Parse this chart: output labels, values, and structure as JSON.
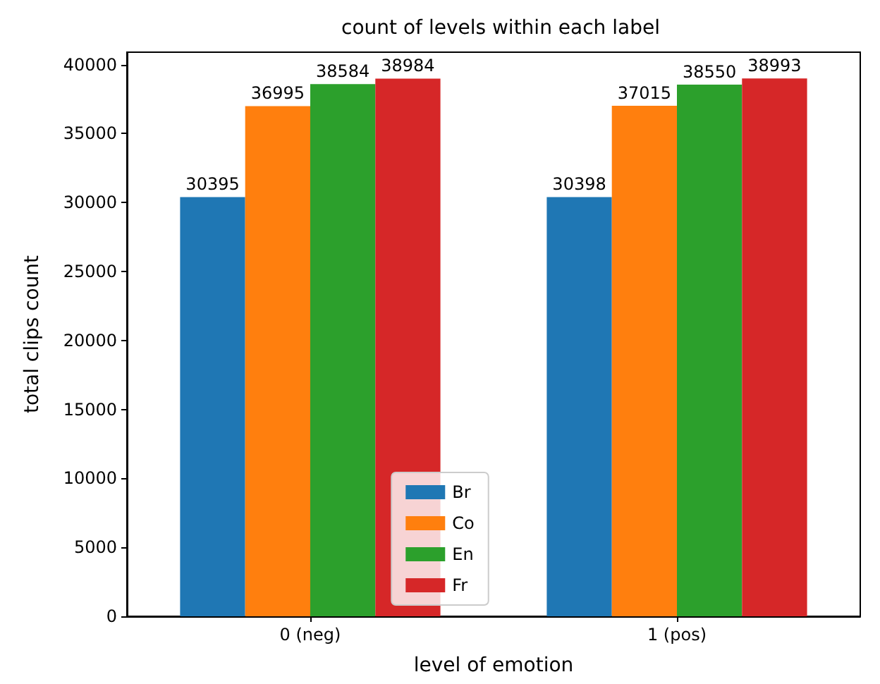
{
  "chart_data": {
    "type": "bar",
    "title": "count of levels within each label",
    "xlabel": "level of emotion",
    "ylabel": "total clips count",
    "categories": [
      "0 (neg)",
      "1 (pos)"
    ],
    "series": [
      {
        "name": "Br",
        "color": "#1f77b4",
        "values": [
          30395,
          30398
        ]
      },
      {
        "name": "Co",
        "color": "#ff7f0e",
        "values": [
          36995,
          37015
        ]
      },
      {
        "name": "En",
        "color": "#2ca02c",
        "values": [
          38584,
          38550
        ]
      },
      {
        "name": "Fr",
        "color": "#d62728",
        "values": [
          38984,
          38993
        ]
      }
    ],
    "ylim": [
      0,
      40900
    ],
    "yticks": [
      0,
      5000,
      10000,
      15000,
      20000,
      25000,
      30000,
      35000,
      40000
    ],
    "data_labels": true,
    "grid": false,
    "legend": "bottom"
  }
}
